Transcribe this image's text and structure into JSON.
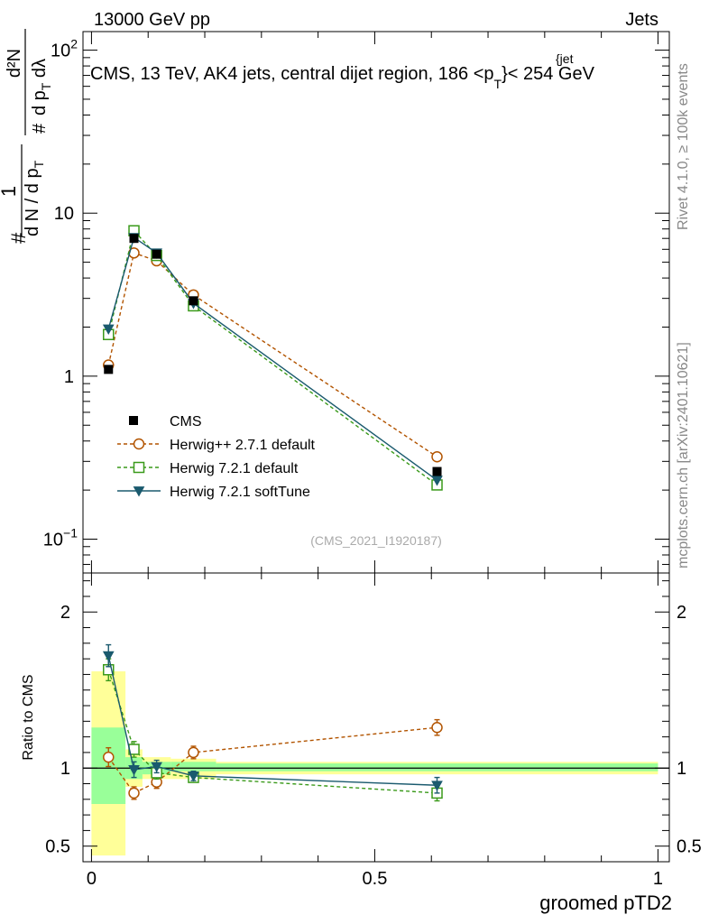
{
  "header": {
    "energy_label": "13000 GeV pp",
    "category_label": "Jets"
  },
  "side_labels": {
    "rivet": "Rivet 4.1.0, ≥ 100k events",
    "mcplots": "mcplots.cern.ch [arXiv:2401.10621]"
  },
  "chart_data": {
    "type": "line",
    "title": "CMS, 13 TeV, AK4 jets, central dijet region, 186 <p",
    "title_sub": "T",
    "title_sup": "{jet",
    "title_suffix": "}< 254 GeV",
    "analysis_id": "(CMS_2021_I1920187)",
    "xlabel": "groomed pTD2",
    "ylabel_top": {
      "num": "1",
      "den": "d N / d p",
      "den_sub": "T",
      "num2": "d²N",
      "den2": "d p",
      "den2_sub": "T",
      "den2_tail": " dλ",
      "hash": "#"
    },
    "ylabel_ratio": "Ratio to CMS",
    "xlim": [
      0,
      1
    ],
    "xticks": [
      {
        "value": 0,
        "label": "0"
      },
      {
        "value": 0.5,
        "label": "0.5"
      },
      {
        "value": 1,
        "label": "1"
      }
    ],
    "ylim_main": [
      0.062,
      130
    ],
    "ylog": true,
    "yticks_main": [
      {
        "value": 0.1,
        "base": "10",
        "exp": "−1"
      },
      {
        "value": 1,
        "base": "1",
        "exp": ""
      },
      {
        "value": 10,
        "base": "10",
        "exp": ""
      },
      {
        "value": 100,
        "base": "10",
        "exp": "2"
      }
    ],
    "ylim_ratio": [
      0.4,
      2.25
    ],
    "yticks_ratio": [
      {
        "value": 0.5,
        "label": "0.5"
      },
      {
        "value": 1,
        "label": "1"
      },
      {
        "value": 2,
        "label": "2"
      }
    ],
    "data_series": {
      "name": "CMS",
      "color": "#000000",
      "points": [
        {
          "x": 0.03,
          "xlo": 0.0,
          "xhi": 0.06,
          "y": 1.1,
          "err": 0.06
        },
        {
          "x": 0.075,
          "xlo": 0.06,
          "xhi": 0.09,
          "y": 7.0,
          "err": 0.3
        },
        {
          "x": 0.115,
          "xlo": 0.09,
          "xhi": 0.14,
          "y": 5.6,
          "err": 0.25
        },
        {
          "x": 0.18,
          "xlo": 0.14,
          "xhi": 0.22,
          "y": 2.9,
          "err": 0.12
        },
        {
          "x": 0.61,
          "xlo": 0.22,
          "xhi": 1.0,
          "y": 0.26,
          "err": 0.012
        }
      ]
    },
    "series": [
      {
        "name": "Herwig++ 2.7.1 default",
        "color": "#b25400",
        "marker": "circle",
        "dash": "4,3",
        "values": [
          1.17,
          5.7,
          5.1,
          3.15,
          0.32
        ],
        "ratio": [
          1.07,
          0.84,
          0.91,
          1.1,
          1.26
        ],
        "ratio_err": [
          0.06,
          0.04,
          0.04,
          0.04,
          0.05
        ]
      },
      {
        "name": "Herwig 7.2.1 default",
        "color": "#3a9a1a",
        "marker": "square",
        "dash": "4,3",
        "values": [
          1.8,
          7.8,
          5.5,
          2.7,
          0.215
        ],
        "ratio": [
          1.63,
          1.12,
          0.97,
          0.94,
          0.84
        ],
        "ratio_err": [
          0.07,
          0.05,
          0.04,
          0.03,
          0.05
        ]
      },
      {
        "name": "Herwig 7.2.1 softTune",
        "color": "#1a5a6e",
        "marker": "triangle-down",
        "dash": "",
        "values": [
          1.95,
          7.1,
          5.7,
          2.8,
          0.23
        ],
        "ratio": [
          1.72,
          0.99,
          1.01,
          0.95,
          0.89
        ],
        "ratio_err": [
          0.07,
          0.05,
          0.04,
          0.03,
          0.05
        ]
      }
    ],
    "ratio_bands": [
      {
        "xlo": 0.0,
        "xhi": 0.06,
        "inner": [
          0.77,
          1.26
        ],
        "outer": [
          0.44,
          1.62
        ]
      },
      {
        "xlo": 0.06,
        "xhi": 0.09,
        "inner": [
          0.93,
          1.07
        ],
        "outer": [
          0.88,
          1.12
        ]
      },
      {
        "xlo": 0.09,
        "xhi": 0.14,
        "inner": [
          0.96,
          1.04
        ],
        "outer": [
          0.93,
          1.07
        ]
      },
      {
        "xlo": 0.14,
        "xhi": 0.22,
        "inner": [
          0.98,
          1.04
        ],
        "outer": [
          0.93,
          1.06
        ]
      },
      {
        "xlo": 0.22,
        "xhi": 1.0,
        "inner": [
          0.98,
          1.03
        ],
        "outer": [
          0.96,
          1.04
        ]
      }
    ],
    "legend": {
      "position": "lower-left",
      "entries": [
        "CMS",
        "Herwig++ 2.7.1 default",
        "Herwig 7.2.1 default",
        "Herwig 7.2.1 softTune"
      ]
    }
  }
}
